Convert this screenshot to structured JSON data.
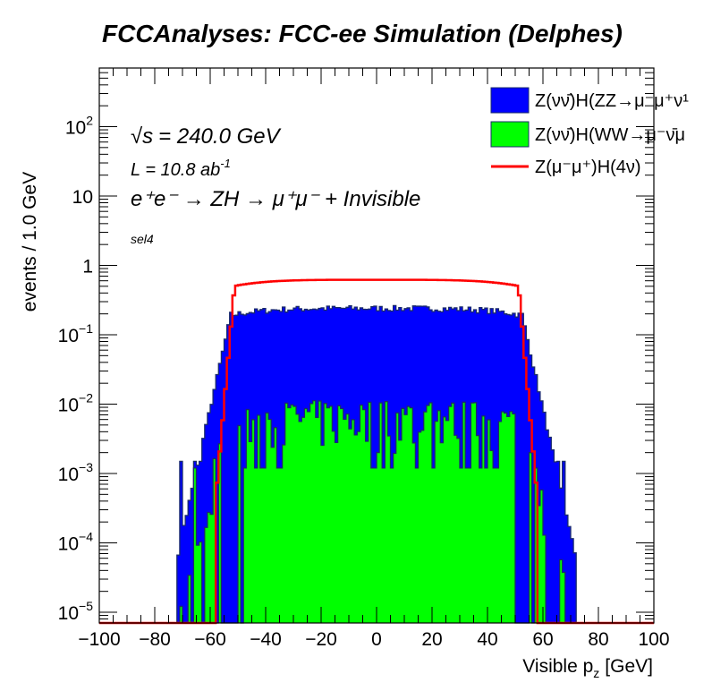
{
  "chart_data": {
    "type": "histogram",
    "title": "FCCAnalyses: FCC-ee Simulation (Delphes)",
    "xlabel": "Visible p",
    "xlabel_sub": "z",
    "xlabel_unit": "[GeV]",
    "ylabel": "events / 1.0 GeV",
    "xlim": [
      -100,
      100
    ],
    "ylim": [
      7e-06,
      700
    ],
    "yscale": "log",
    "x_ticks": [
      "−100",
      "−80",
      "−60",
      "−40",
      "−20",
      "0",
      "20",
      "40",
      "60",
      "80",
      "100"
    ],
    "y_ticks": [
      {
        "base": "10",
        "exp": "−5",
        "value": 1e-05
      },
      {
        "base": "10",
        "exp": "−4",
        "value": 0.0001
      },
      {
        "base": "10",
        "exp": "−3",
        "value": 0.001
      },
      {
        "base": "10",
        "exp": "−2",
        "value": 0.01
      },
      {
        "base": "10",
        "exp": "−1",
        "value": 0.1
      },
      {
        "base": "1",
        "exp": "",
        "value": 1
      },
      {
        "base": "10",
        "exp": "",
        "value": 10
      },
      {
        "base": "10",
        "exp": "2",
        "value": 100
      }
    ],
    "annotations": {
      "sqrt_s": "= 240.0 GeV",
      "sqrt_symbol": "√s",
      "lumi": "L = 10.8 ab",
      "lumi_exp": "-1",
      "process": "e⁺e⁻ → ZH → μ⁺μ⁻ + Invisible",
      "selection": "sel4"
    },
    "series": [
      {
        "name": "Z(νν̄)H(ZZ→μ⁻μ⁺ν¹",
        "style": "filled",
        "color": "#0000ff",
        "shape": {
          "x_min": -72,
          "x_max": 72,
          "edge_x": 52,
          "peak": 0.24
        }
      },
      {
        "name": "Z(νν̄)H(WW→μ⁻ν̄μ",
        "style": "filled",
        "color": "#00ff00",
        "shape": {
          "x_min": -72,
          "x_max": 68,
          "edge_x": 54,
          "peak": 0.006
        }
      },
      {
        "name": "Z(μ⁻μ⁺)H(4ν)",
        "style": "line",
        "color": "#ff0000",
        "shape": {
          "x_min": -58,
          "x_max": 58,
          "edge_x": 51,
          "peak": 0.62
        }
      }
    ]
  }
}
